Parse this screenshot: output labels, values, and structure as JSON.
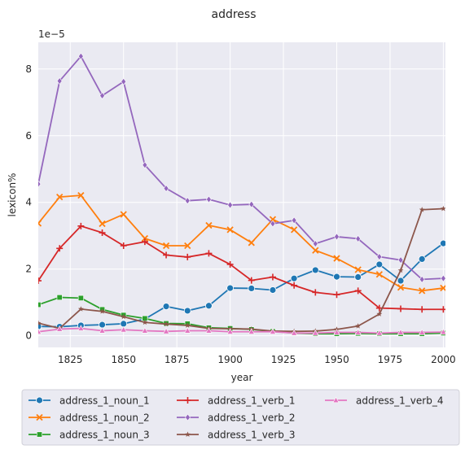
{
  "chart_data": {
    "type": "line",
    "title": "address",
    "xlabel": "year",
    "ylabel": "lexicon%",
    "y_multiplier_label": "1e−5",
    "xlim": [
      1810,
      2001
    ],
    "ylim": [
      -0.35,
      8.8
    ],
    "x_ticks": [
      1825,
      1850,
      1875,
      1900,
      1925,
      1950,
      1975,
      2000
    ],
    "y_ticks": [
      0,
      2,
      4,
      6,
      8
    ],
    "grid": true,
    "legend_position": "bottom",
    "x": [
      1810,
      1820,
      1830,
      1840,
      1850,
      1860,
      1870,
      1880,
      1890,
      1900,
      1910,
      1920,
      1930,
      1940,
      1950,
      1960,
      1970,
      1980,
      1990,
      2000
    ],
    "series": [
      {
        "name": "address_1_noun_1",
        "color": "#1f77b4",
        "marker": "circle",
        "values": [
          0.28,
          0.27,
          0.31,
          0.33,
          0.36,
          0.5,
          0.88,
          0.75,
          0.9,
          1.43,
          1.42,
          1.37,
          1.72,
          1.97,
          1.77,
          1.76,
          2.14,
          1.65,
          2.3,
          2.77
        ]
      },
      {
        "name": "address_1_noun_2",
        "color": "#ff7f0e",
        "marker": "x",
        "values": [
          3.37,
          4.16,
          4.21,
          3.36,
          3.64,
          2.92,
          2.7,
          2.7,
          3.31,
          3.18,
          2.79,
          3.49,
          3.18,
          2.56,
          2.32,
          1.98,
          1.84,
          1.45,
          1.35,
          1.43
        ]
      },
      {
        "name": "address_1_noun_3",
        "color": "#2ca02c",
        "marker": "square",
        "values": [
          0.93,
          1.15,
          1.13,
          0.79,
          0.62,
          0.52,
          0.37,
          0.36,
          0.24,
          0.22,
          0.19,
          0.13,
          0.08,
          0.06,
          0.06,
          0.07,
          0.06,
          0.06,
          0.06,
          0.08
        ]
      },
      {
        "name": "address_1_verb_1",
        "color": "#d62728",
        "marker": "plus",
        "values": [
          1.65,
          2.62,
          3.29,
          3.09,
          2.7,
          2.82,
          2.42,
          2.36,
          2.47,
          2.14,
          1.66,
          1.76,
          1.51,
          1.3,
          1.23,
          1.35,
          0.83,
          0.81,
          0.79,
          0.79
        ]
      },
      {
        "name": "address_1_verb_2",
        "color": "#9467bd",
        "marker": "diamond",
        "values": [
          4.55,
          7.64,
          8.38,
          7.2,
          7.62,
          5.12,
          4.42,
          4.05,
          4.09,
          3.92,
          3.94,
          3.36,
          3.46,
          2.76,
          2.97,
          2.91,
          2.37,
          2.27,
          1.69,
          1.72
        ]
      },
      {
        "name": "address_1_verb_3",
        "color": "#8c564b",
        "marker": "star",
        "values": [
          0.38,
          0.22,
          0.8,
          0.73,
          0.57,
          0.4,
          0.35,
          0.31,
          0.22,
          0.21,
          0.2,
          0.14,
          0.13,
          0.14,
          0.19,
          0.29,
          0.65,
          1.96,
          3.78,
          3.81
        ]
      },
      {
        "name": "address_1_verb_4",
        "color": "#e377c2",
        "marker": "triangle",
        "values": [
          0.12,
          0.2,
          0.22,
          0.15,
          0.18,
          0.15,
          0.13,
          0.15,
          0.15,
          0.12,
          0.12,
          0.12,
          0.08,
          0.08,
          0.1,
          0.1,
          0.08,
          0.1,
          0.1,
          0.11
        ]
      }
    ]
  }
}
